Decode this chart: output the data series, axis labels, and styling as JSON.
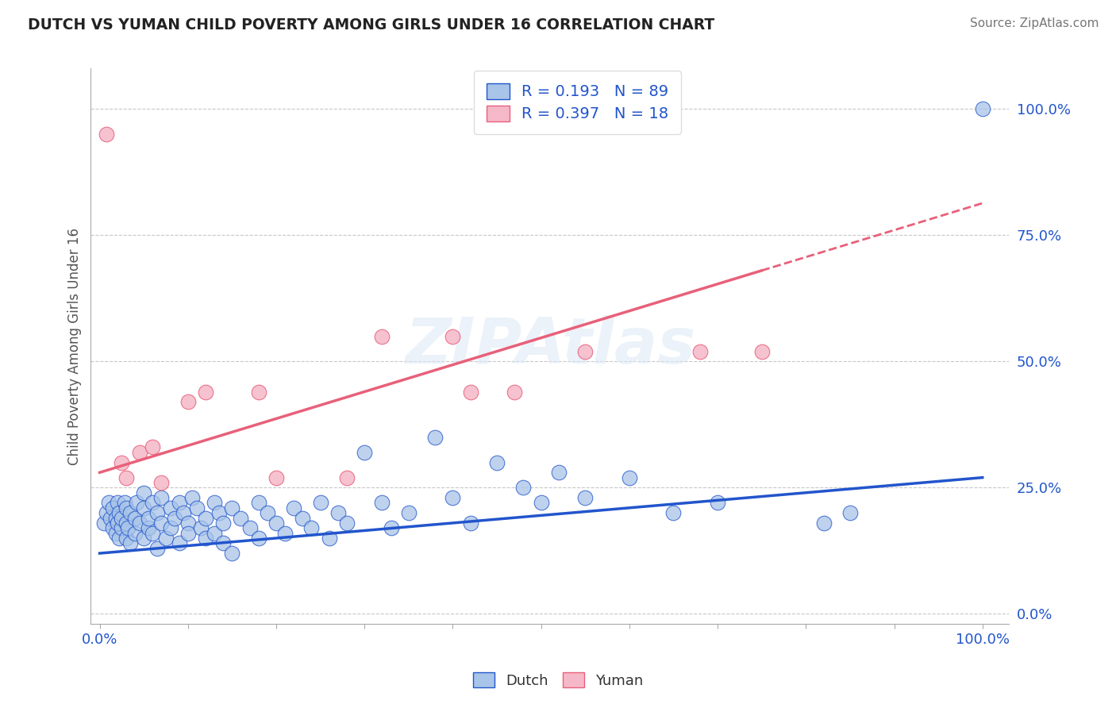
{
  "title": "DUTCH VS YUMAN CHILD POVERTY AMONG GIRLS UNDER 16 CORRELATION CHART",
  "source": "Source: ZipAtlas.com",
  "ylabel": "Child Poverty Among Girls Under 16",
  "dutch_R": 0.193,
  "dutch_N": 89,
  "yuman_R": 0.397,
  "yuman_N": 18,
  "dutch_color": "#a8c4e8",
  "yuman_color": "#f5b8c8",
  "dutch_line_color": "#2255cc",
  "yuman_line_color": "#e8607a",
  "label_color": "#2255cc",
  "background_color": "#ffffff",
  "ytick_labels": [
    "0.0%",
    "25.0%",
    "50.0%",
    "75.0%",
    "100.0%"
  ],
  "ytick_values": [
    0.0,
    0.25,
    0.5,
    0.75,
    1.0
  ],
  "dutch_points": [
    [
      0.005,
      0.18
    ],
    [
      0.008,
      0.2
    ],
    [
      0.01,
      0.22
    ],
    [
      0.012,
      0.19
    ],
    [
      0.015,
      0.17
    ],
    [
      0.015,
      0.21
    ],
    [
      0.018,
      0.16
    ],
    [
      0.018,
      0.19
    ],
    [
      0.02,
      0.22
    ],
    [
      0.02,
      0.18
    ],
    [
      0.022,
      0.15
    ],
    [
      0.022,
      0.2
    ],
    [
      0.025,
      0.17
    ],
    [
      0.025,
      0.19
    ],
    [
      0.028,
      0.22
    ],
    [
      0.03,
      0.18
    ],
    [
      0.03,
      0.15
    ],
    [
      0.03,
      0.21
    ],
    [
      0.032,
      0.17
    ],
    [
      0.035,
      0.2
    ],
    [
      0.035,
      0.14
    ],
    [
      0.04,
      0.19
    ],
    [
      0.04,
      0.16
    ],
    [
      0.042,
      0.22
    ],
    [
      0.045,
      0.18
    ],
    [
      0.05,
      0.21
    ],
    [
      0.05,
      0.15
    ],
    [
      0.05,
      0.24
    ],
    [
      0.055,
      0.17
    ],
    [
      0.055,
      0.19
    ],
    [
      0.06,
      0.22
    ],
    [
      0.06,
      0.16
    ],
    [
      0.065,
      0.2
    ],
    [
      0.065,
      0.13
    ],
    [
      0.07,
      0.18
    ],
    [
      0.07,
      0.23
    ],
    [
      0.075,
      0.15
    ],
    [
      0.08,
      0.21
    ],
    [
      0.08,
      0.17
    ],
    [
      0.085,
      0.19
    ],
    [
      0.09,
      0.22
    ],
    [
      0.09,
      0.14
    ],
    [
      0.095,
      0.2
    ],
    [
      0.1,
      0.18
    ],
    [
      0.1,
      0.16
    ],
    [
      0.105,
      0.23
    ],
    [
      0.11,
      0.21
    ],
    [
      0.115,
      0.17
    ],
    [
      0.12,
      0.19
    ],
    [
      0.12,
      0.15
    ],
    [
      0.13,
      0.22
    ],
    [
      0.13,
      0.16
    ],
    [
      0.135,
      0.2
    ],
    [
      0.14,
      0.18
    ],
    [
      0.14,
      0.14
    ],
    [
      0.15,
      0.21
    ],
    [
      0.15,
      0.12
    ],
    [
      0.16,
      0.19
    ],
    [
      0.17,
      0.17
    ],
    [
      0.18,
      0.22
    ],
    [
      0.18,
      0.15
    ],
    [
      0.19,
      0.2
    ],
    [
      0.2,
      0.18
    ],
    [
      0.21,
      0.16
    ],
    [
      0.22,
      0.21
    ],
    [
      0.23,
      0.19
    ],
    [
      0.24,
      0.17
    ],
    [
      0.25,
      0.22
    ],
    [
      0.26,
      0.15
    ],
    [
      0.27,
      0.2
    ],
    [
      0.28,
      0.18
    ],
    [
      0.3,
      0.32
    ],
    [
      0.32,
      0.22
    ],
    [
      0.33,
      0.17
    ],
    [
      0.35,
      0.2
    ],
    [
      0.38,
      0.35
    ],
    [
      0.4,
      0.23
    ],
    [
      0.42,
      0.18
    ],
    [
      0.45,
      0.3
    ],
    [
      0.48,
      0.25
    ],
    [
      0.5,
      0.22
    ],
    [
      0.52,
      0.28
    ],
    [
      0.55,
      0.23
    ],
    [
      0.6,
      0.27
    ],
    [
      0.65,
      0.2
    ],
    [
      0.7,
      0.22
    ],
    [
      0.82,
      0.18
    ],
    [
      0.85,
      0.2
    ],
    [
      1.0,
      1.0
    ]
  ],
  "yuman_points": [
    [
      0.008,
      0.95
    ],
    [
      0.025,
      0.3
    ],
    [
      0.03,
      0.27
    ],
    [
      0.045,
      0.32
    ],
    [
      0.06,
      0.33
    ],
    [
      0.07,
      0.26
    ],
    [
      0.1,
      0.42
    ],
    [
      0.12,
      0.44
    ],
    [
      0.18,
      0.44
    ],
    [
      0.2,
      0.27
    ],
    [
      0.28,
      0.27
    ],
    [
      0.32,
      0.55
    ],
    [
      0.4,
      0.55
    ],
    [
      0.42,
      0.44
    ],
    [
      0.47,
      0.44
    ],
    [
      0.55,
      0.52
    ],
    [
      0.68,
      0.52
    ],
    [
      0.75,
      0.52
    ]
  ],
  "dutch_trend": [
    0.0,
    1.0,
    0.12,
    0.27
  ],
  "yuman_trend": [
    0.0,
    0.8,
    0.28,
    0.68
  ]
}
